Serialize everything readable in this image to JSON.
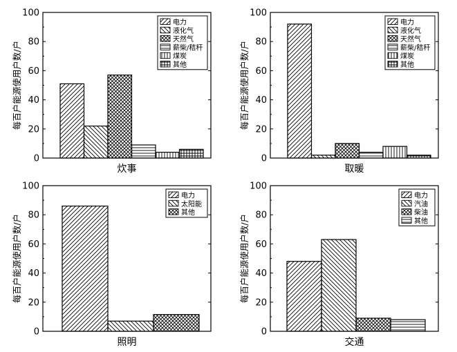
{
  "chart_data": [
    {
      "type": "bar",
      "xlabel": "炊事",
      "ylabel": "每百户能源使用户数/户",
      "ylim": [
        0,
        100
      ],
      "yticks": [
        0,
        20,
        40,
        60,
        80,
        100
      ],
      "legend_position": "top-right",
      "series": [
        {
          "name": "电力",
          "value": 51,
          "pattern": "diag-right"
        },
        {
          "name": "液化气",
          "value": 22,
          "pattern": "diag-left"
        },
        {
          "name": "天然气",
          "value": 57,
          "pattern": "crosshatch"
        },
        {
          "name": "薪柴/秸秆",
          "value": 9,
          "pattern": "horizontal"
        },
        {
          "name": "煤炭",
          "value": 4,
          "pattern": "vertical"
        },
        {
          "name": "其他",
          "value": 6,
          "pattern": "grid"
        }
      ]
    },
    {
      "type": "bar",
      "xlabel": "取暖",
      "ylabel": "每百户能源使用户数/户",
      "ylim": [
        0,
        100
      ],
      "yticks": [
        0,
        20,
        40,
        60,
        80,
        100
      ],
      "legend_position": "top-right",
      "series": [
        {
          "name": "电力",
          "value": 92,
          "pattern": "diag-right"
        },
        {
          "name": "液化气",
          "value": 2,
          "pattern": "diag-left"
        },
        {
          "name": "天然气",
          "value": 10,
          "pattern": "crosshatch"
        },
        {
          "name": "薪柴/秸秆",
          "value": 4,
          "pattern": "horizontal"
        },
        {
          "name": "煤炭",
          "value": 8,
          "pattern": "vertical"
        },
        {
          "name": "其他",
          "value": 2,
          "pattern": "grid"
        }
      ]
    },
    {
      "type": "bar",
      "xlabel": "照明",
      "ylabel": "每百户能源使用户数/户",
      "ylim": [
        0,
        100
      ],
      "yticks": [
        0,
        20,
        40,
        60,
        80,
        100
      ],
      "legend_position": "top-right",
      "series": [
        {
          "name": "电力",
          "value": 86,
          "pattern": "diag-right"
        },
        {
          "name": "太阳能",
          "value": 7,
          "pattern": "diag-left"
        },
        {
          "name": "其他",
          "value": 11.5,
          "pattern": "crosshatch"
        }
      ]
    },
    {
      "type": "bar",
      "xlabel": "交通",
      "ylabel": "每百户能源使用户数/户",
      "ylim": [
        0,
        100
      ],
      "yticks": [
        0,
        20,
        40,
        60,
        80,
        100
      ],
      "legend_position": "top-right",
      "series": [
        {
          "name": "电力",
          "value": 48,
          "pattern": "diag-right"
        },
        {
          "name": "汽油",
          "value": 63,
          "pattern": "diag-left"
        },
        {
          "name": "柴油",
          "value": 9,
          "pattern": "crosshatch"
        },
        {
          "name": "其他",
          "value": 8,
          "pattern": "horizontal"
        }
      ]
    }
  ]
}
